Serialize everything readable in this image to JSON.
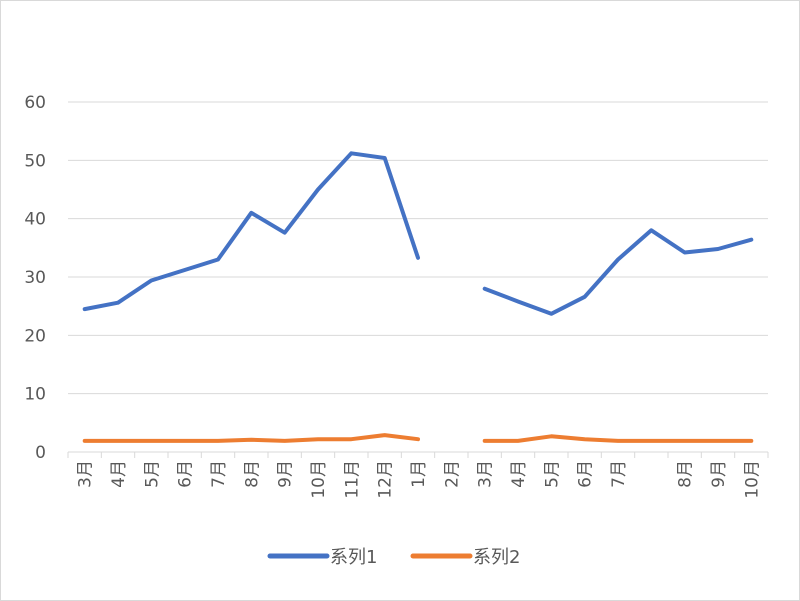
{
  "chart_data": {
    "type": "line",
    "title": "",
    "xlabel": "",
    "ylabel": "",
    "ylim": [
      0,
      60
    ],
    "yticks": [
      0,
      10,
      20,
      30,
      40,
      50,
      60
    ],
    "grid": true,
    "legend_position": "bottom",
    "categories": [
      "3月",
      "4月",
      "5月",
      "6月",
      "7月",
      "8月",
      "9月",
      "10月",
      "11月",
      "12月",
      "1月",
      "2月",
      "3月",
      "4月",
      "5月",
      "6月",
      "7月",
      "",
      "8月",
      "9月",
      "10月"
    ],
    "series": [
      {
        "name": "系列1",
        "color": "#4472c4",
        "values": [
          24.5,
          25.6,
          29.4,
          31.2,
          33.0,
          41.0,
          37.6,
          45.0,
          51.2,
          50.4,
          33.3,
          null,
          28.0,
          25.8,
          23.7,
          26.6,
          33.0,
          38.0,
          34.2,
          34.8,
          36.4
        ]
      },
      {
        "name": "系列2",
        "color": "#ed7d31",
        "values": [
          1.9,
          1.9,
          1.9,
          1.9,
          1.9,
          2.1,
          1.9,
          2.2,
          2.2,
          2.9,
          2.2,
          null,
          1.9,
          1.9,
          2.7,
          2.2,
          1.9,
          1.9,
          1.9,
          1.9,
          1.9
        ]
      }
    ]
  }
}
